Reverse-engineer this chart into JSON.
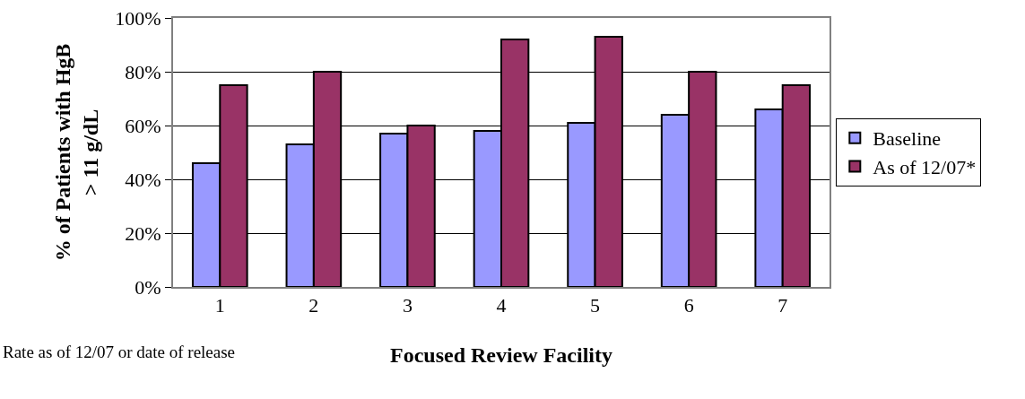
{
  "chart_data": {
    "type": "bar",
    "xlabel": "Focused Review Facility",
    "ylabel": "% of Patients with HgB\n> 11 g/dL",
    "categories": [
      "1",
      "2",
      "3",
      "4",
      "5",
      "6",
      "7"
    ],
    "series": [
      {
        "name": "Baseline",
        "color": "#9999ff",
        "values": [
          46,
          53,
          57,
          58,
          61,
          64,
          66
        ]
      },
      {
        "name": "As of 12/07*",
        "color": "#993366",
        "values": [
          75,
          80,
          60,
          92,
          93,
          80,
          75
        ]
      }
    ],
    "ylim": [
      0,
      100
    ],
    "yticks": [
      {
        "value": 0,
        "label": "0%"
      },
      {
        "value": 20,
        "label": "20%"
      },
      {
        "value": 40,
        "label": "40%"
      },
      {
        "value": 60,
        "label": "60%"
      },
      {
        "value": 80,
        "label": "80%"
      },
      {
        "value": 100,
        "label": "100%"
      }
    ],
    "grid": "y",
    "legend": "right",
    "annotations": [
      "Rate as of 12/07 or date of release"
    ]
  }
}
